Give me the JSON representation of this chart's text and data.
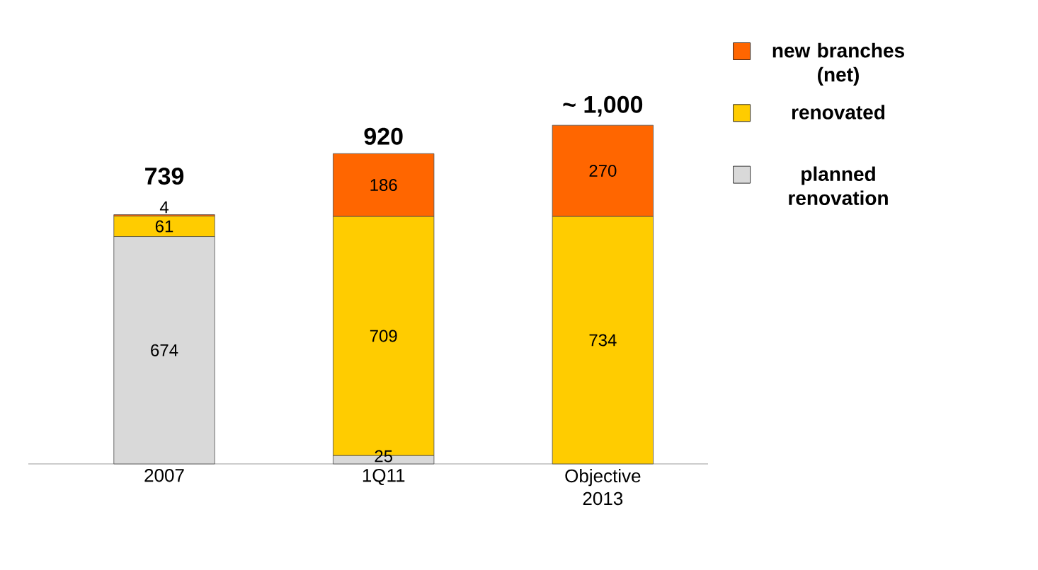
{
  "chart_data": {
    "type": "bar",
    "stacked": true,
    "categories": [
      "2007",
      "1Q11",
      "Objective 2013"
    ],
    "series": [
      {
        "name": "planned renovation",
        "color": "#d9d9d9",
        "values": [
          674,
          25,
          null
        ]
      },
      {
        "name": "renovated",
        "color": "#ffcc00",
        "values": [
          61,
          709,
          734
        ]
      },
      {
        "name": "new branches (net)",
        "color": "#ff6600",
        "values": [
          4,
          186,
          270
        ]
      }
    ],
    "data_labels": true,
    "totals": [
      "739",
      "920",
      null
    ],
    "annotations": [
      {
        "text": "~ 1,000",
        "x": "Objective 2013",
        "y": 1004
      }
    ],
    "legend": "right"
  }
}
